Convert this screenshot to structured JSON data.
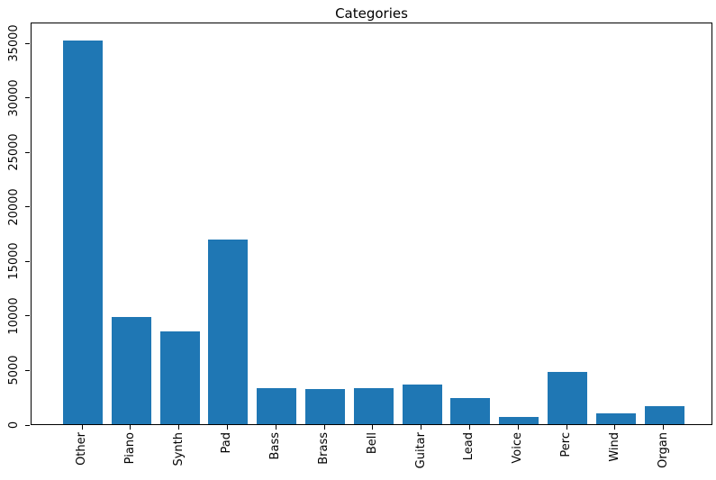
{
  "chart_data": {
    "type": "bar",
    "title": "Categories",
    "categories": [
      "Other",
      "Piano",
      "Synth",
      "Pad",
      "Bass",
      "Brass",
      "Bell",
      "Guitar",
      "Lead",
      "Voice",
      "Perc",
      "Wind",
      "Organ"
    ],
    "values": [
      35200,
      9820,
      8500,
      16960,
      3330,
      3220,
      3330,
      3660,
      2390,
      650,
      4810,
      1020,
      1650
    ],
    "xlabel": "",
    "ylabel": "",
    "yticks": [
      0,
      5000,
      10000,
      15000,
      20000,
      25000,
      30000,
      35000
    ],
    "ylim": [
      0,
      36900
    ],
    "grid": false,
    "legend_position": "none",
    "tick_label_rotation_deg": 90,
    "bar_color": "#1f77b4",
    "spine_color": "#000000",
    "background_color": "#ffffff"
  }
}
